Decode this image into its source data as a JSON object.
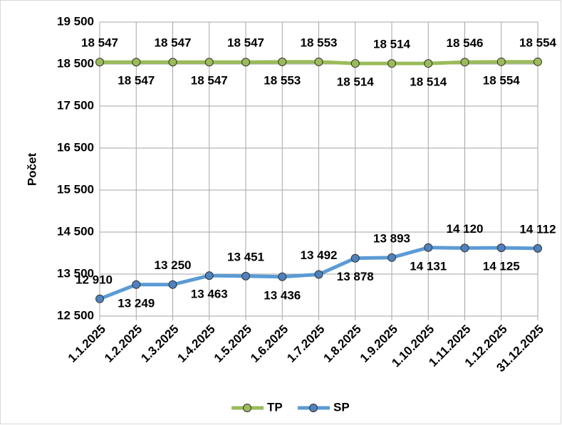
{
  "chart_data": {
    "type": "line",
    "y_label": "Počet",
    "categories": [
      "1.1.2025",
      "1.2.2025",
      "1.3.2025",
      "1.4.2025",
      "1.5.2025",
      "1.6.2025",
      "1.7.2025",
      "1.8.2025",
      "1.9.2025",
      "1.10.2025",
      "1.11.2025",
      "1.12.2025",
      "31.12.2025"
    ],
    "series": [
      {
        "name": "TP",
        "color": "#9bbb59",
        "marker_color": "#9bbb59",
        "values": [
          18547,
          18547,
          18547,
          18547,
          18547,
          18553,
          18553,
          18514,
          18514,
          18514,
          18546,
          18554,
          18554
        ],
        "value_labels": [
          "18 547",
          "18 547",
          "18 547",
          "18 547",
          "18 547",
          "18 553",
          "18 553",
          "18 514",
          "18 514",
          "18 514",
          "18 546",
          "18 554",
          "18 554"
        ]
      },
      {
        "name": "SP",
        "color": "#5b9bd5",
        "marker_color": "#4f81bd",
        "values": [
          12910,
          13249,
          13250,
          13463,
          13451,
          13436,
          13492,
          13878,
          13893,
          14131,
          14120,
          14125,
          14112
        ],
        "value_labels": [
          "12 910",
          "13 249",
          "13 250",
          "13 463",
          "13 451",
          "13 436",
          "13 492",
          "13 878",
          "13 893",
          "14 131",
          "14 120",
          "14 125",
          "14 112"
        ]
      }
    ],
    "ylim": [
      12500,
      19500
    ],
    "yticks": [
      {
        "value": 12500,
        "label": "12 500"
      },
      {
        "value": 13500,
        "label": "13 500"
      },
      {
        "value": 14500,
        "label": "14 500"
      },
      {
        "value": 15500,
        "label": "15 500"
      },
      {
        "value": 16500,
        "label": "16 500"
      },
      {
        "value": 17500,
        "label": "17 500"
      },
      {
        "value": 18500,
        "label": "18 500"
      },
      {
        "value": 19500,
        "label": "19 500"
      }
    ],
    "grid": true,
    "legend": "bottom"
  }
}
